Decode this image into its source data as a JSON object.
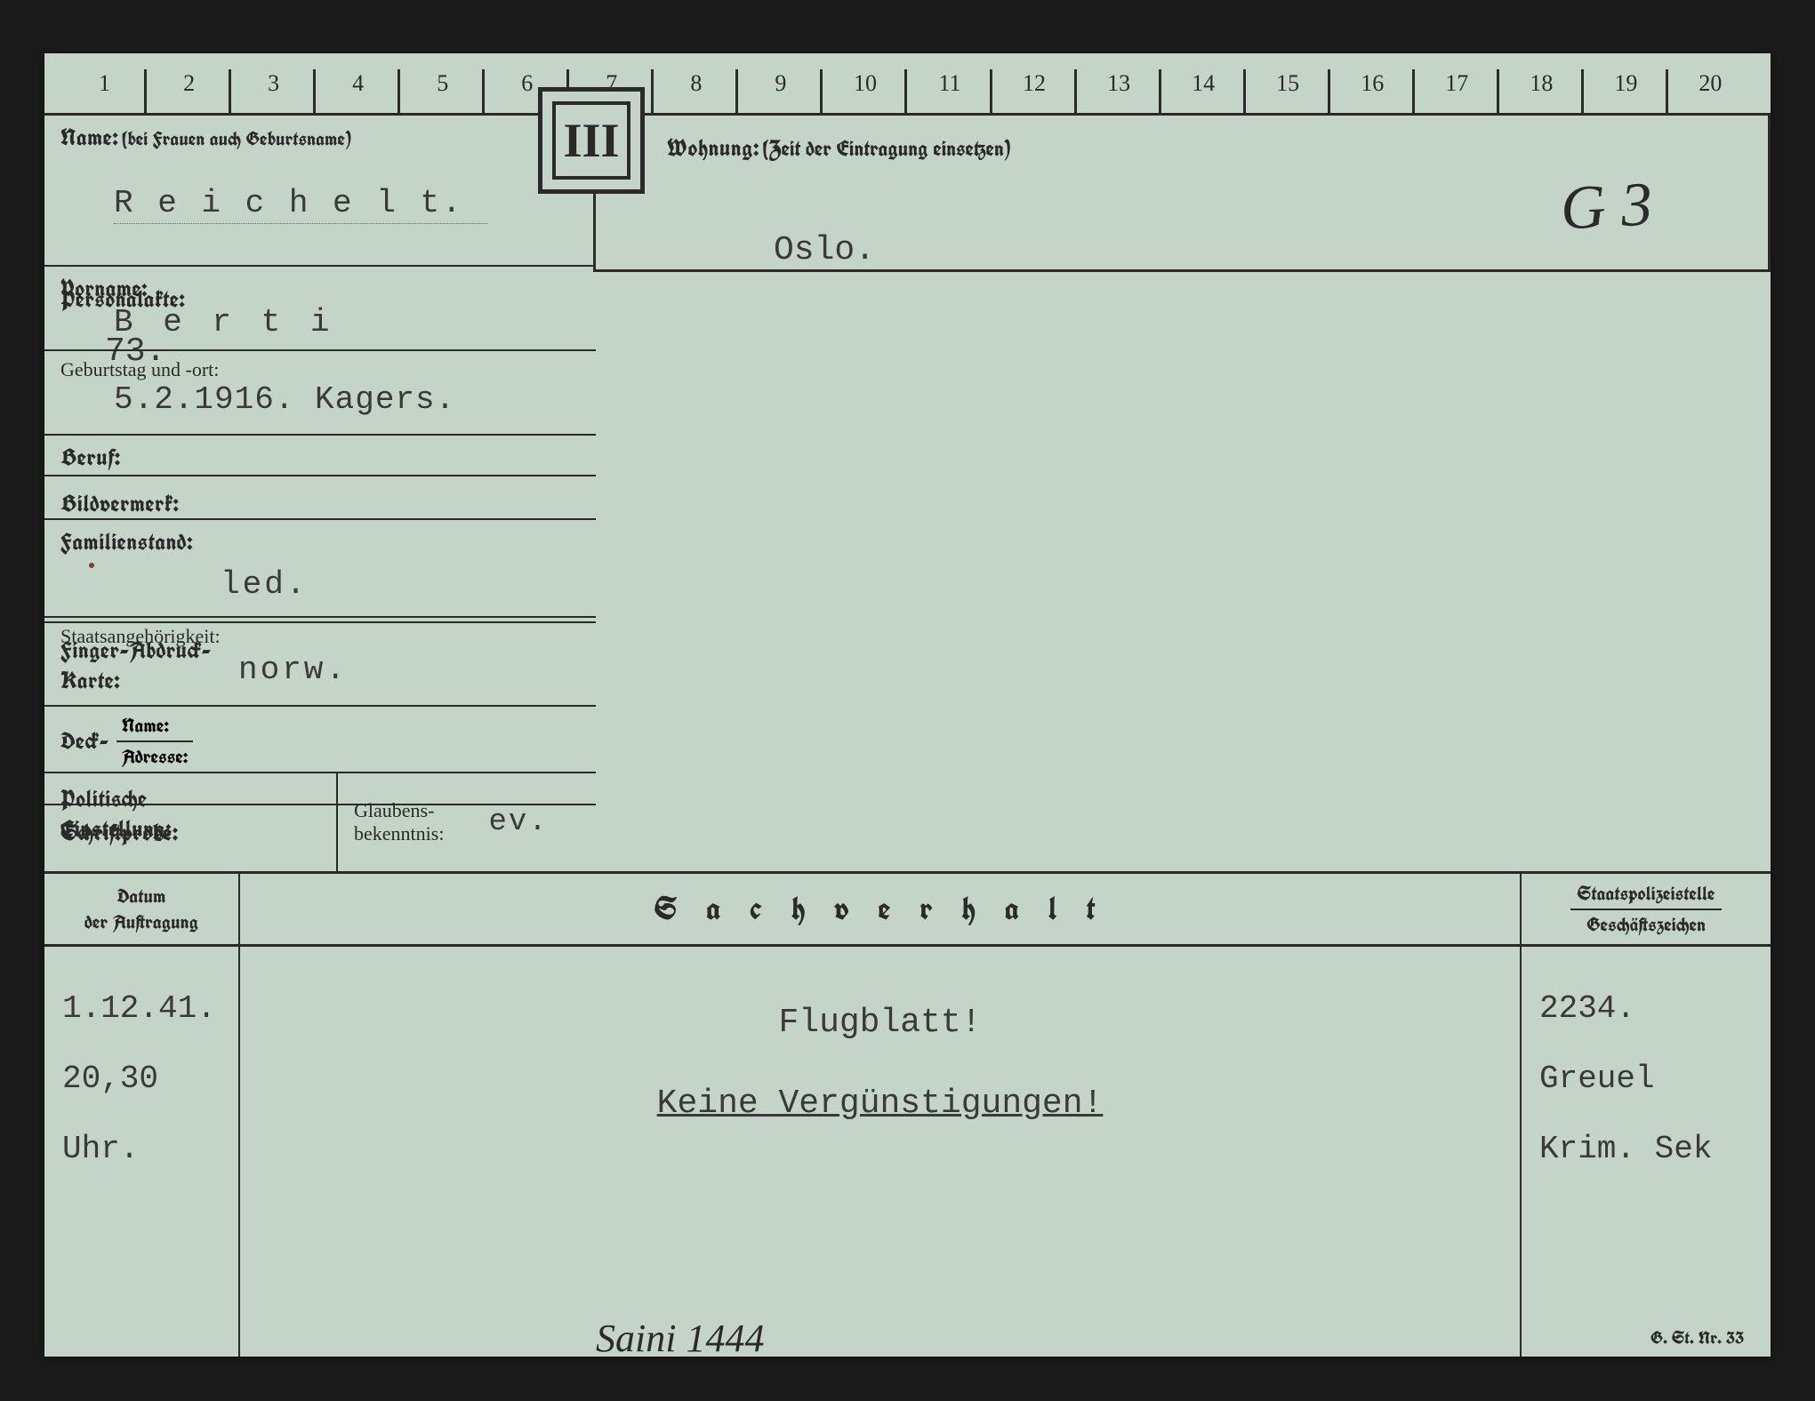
{
  "ruler": [
    "1",
    "2",
    "3",
    "4",
    "5",
    "6",
    "7",
    "8",
    "9",
    "10",
    "11",
    "12",
    "13",
    "14",
    "15",
    "16",
    "17",
    "18",
    "19",
    "20"
  ],
  "roman": "III",
  "labels": {
    "name": "Name:",
    "name_sub": "(bei Frauen auch Geburtsname)",
    "vorname": "Vorname:",
    "geburtstag": "Geburtstag und -ort:",
    "beruf": "Beruf:",
    "familienstand": "Familienstand:",
    "staats": "Staatsangehörigkeit:",
    "deck": "Deck-",
    "deck_name": "Name:",
    "deck_adresse": "Adresse:",
    "politische": "Politische",
    "einstellung": "Einstellung:",
    "glaubens": "Glaubens-",
    "bekenntnis": "bekenntnis:",
    "wohnung": "Wohnung:",
    "wohnung_sub": "(Zeit der Eintragung einsetzen)",
    "personalakte": "Personalakte:",
    "bildvermerk": "Bildvermerk:",
    "fingerabdruck1": "Finger-Abdruck-",
    "fingerabdruck2": "Karte:",
    "schriftprobe": "Schriftprobe:",
    "datum1": "Datum",
    "datum2": "der Auftragung",
    "sachverhalt": "S a c h v e r h a l t",
    "staatspolizei": "Staatspolizeistelle",
    "geschaft": "Geschäftszeichen",
    "footer": "G. St. Nr. 33"
  },
  "values": {
    "name": "R e i c h e l t.",
    "vorname": "B e r t i",
    "geburtstag": "5.2.1916. Kagers.",
    "beruf": "",
    "familienstand": "led.",
    "staats": "norw.",
    "glaubens": "ev.",
    "wohnung": "Oslo.",
    "personalakte": "73.",
    "handwritten_mid": "G 3",
    "datum_line1": "1.12.41.",
    "datum_line2": "20,30 Uhr.",
    "sach_line1": "Flugblatt!",
    "sach_line2": "Keine Vergünstigungen!",
    "ref_line1": "2234.",
    "ref_line2": "Greuel",
    "ref_line3": "Krim. Sek",
    "handwritten_bottom": "Saini 1444"
  },
  "colors": {
    "paper": "#c5d4c8",
    "ink": "#2a2a2a",
    "type": "#3a3a3a",
    "background": "#1a1a1a"
  }
}
